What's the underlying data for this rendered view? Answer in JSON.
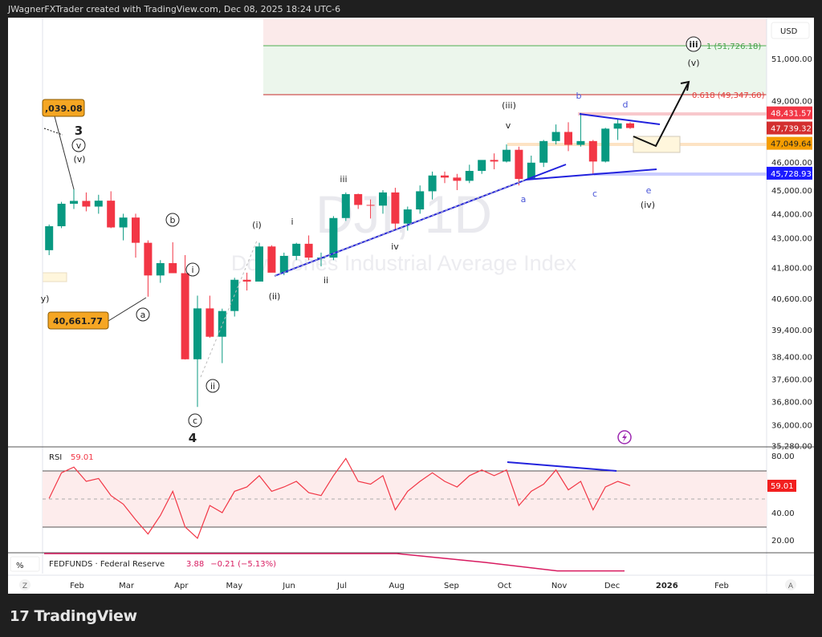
{
  "header": {
    "credit": "JWagnerFXTrader created with TradingView.com, Dec 08, 2025 18:24 UTC-6"
  },
  "watermark": {
    "symbol": "DJI, 1D",
    "name": "Dow Jones Industrial Average Index"
  },
  "price_axis": {
    "currency": "USD",
    "ticks": [
      "51,000.00",
      "49,000.00",
      "46,000.00",
      "45,000.00",
      "44,000.00",
      "43,000.00",
      "41,800.00",
      "40,600.00",
      "39,400.00",
      "38,400.00",
      "37,600.00",
      "36,800.00",
      "36,000.00",
      "35,280.00"
    ],
    "badges": [
      {
        "label": "48,431.57",
        "color": "#f23645"
      },
      {
        "label": "47,739.32",
        "color": "#d32f2f"
      },
      {
        "label": "47,049.64",
        "color": "#f59d00"
      },
      {
        "label": "45,728.93",
        "color": "#1a1aff"
      }
    ]
  },
  "fib": {
    "level_1": "1 (51,726.18)",
    "level_0618": "0.618 (49,347.60)"
  },
  "callouts": {
    "high": ",039.08",
    "low": "40,661.77"
  },
  "wave_labels": {
    "w3": "3",
    "v_circ": "v",
    "v_paren_a": "(v)",
    "b_circ": "b",
    "i_circ": "i",
    "a_circ": "a",
    "ii_circ": "ii",
    "c_circ": "c",
    "w4": "4",
    "i_paren": "(i)",
    "i_small": "i",
    "iii_small": "iii",
    "iv_small": "iv",
    "ii_small": "ii",
    "ii_paren": "(ii)",
    "iii_paren": "(iii)",
    "v_small": "v",
    "a_tri": "a",
    "b_tri": "b",
    "c_tri": "c",
    "d_tri": "d",
    "e_tri": "e",
    "iv_paren": "(iv)",
    "iii_circ_top": "iii",
    "v_paren_top": "(v)",
    "v_left_clip": "y)"
  },
  "rsi": {
    "title": "RSI",
    "value": "59.01",
    "ticks": [
      "80.00",
      "40.00",
      "20.00"
    ],
    "badge": "59.01",
    "color": "#f23645"
  },
  "fedfunds": {
    "axis_unit": "%",
    "title": "FEDFUNDS · Federal Reserve",
    "value": "3.88",
    "change": "−0.21 (−5.13%)",
    "color": "#d81b60"
  },
  "time_axis": {
    "left_button": "Z",
    "right_button": "A",
    "ticks": [
      {
        "label": "Feb",
        "date": "2025-02-01"
      },
      {
        "label": "Mar",
        "date": "2025-03-01"
      },
      {
        "label": "Apr",
        "date": "2025-04-01"
      },
      {
        "label": "May",
        "date": "2025-05-01"
      },
      {
        "label": "Jun",
        "date": "2025-06-01"
      },
      {
        "label": "Jul",
        "date": "2025-07-01"
      },
      {
        "label": "Aug",
        "date": "2025-08-01"
      },
      {
        "label": "Sep",
        "date": "2025-09-01"
      },
      {
        "label": "Oct",
        "date": "2025-10-01"
      },
      {
        "label": "Nov",
        "date": "2025-11-01"
      },
      {
        "label": "Dec",
        "date": "2025-12-01"
      },
      {
        "label": "2026",
        "date": "2026-01-01"
      },
      {
        "label": "Feb",
        "date": "2026-02-01"
      }
    ]
  },
  "footer": {
    "brand": "TradingView"
  },
  "chart_data": {
    "type": "candlestick",
    "symbol": "DJI",
    "interval": "1D",
    "y_scale": "log",
    "ylim": [
      35280,
      53000
    ],
    "up_color": "#089981",
    "down_color": "#f23645",
    "candles_approx_weekly": [
      {
        "d": "2025-01-13",
        "o": 42500,
        "h": 43550,
        "l": 42300,
        "c": 43480
      },
      {
        "d": "2025-01-20",
        "o": 43480,
        "h": 44500,
        "l": 43400,
        "c": 44420
      },
      {
        "d": "2025-01-27",
        "o": 44420,
        "h": 45050,
        "l": 44200,
        "c": 44540
      },
      {
        "d": "2025-02-03",
        "o": 44540,
        "h": 44900,
        "l": 44100,
        "c": 44300
      },
      {
        "d": "2025-02-10",
        "o": 44300,
        "h": 44800,
        "l": 44000,
        "c": 44550
      },
      {
        "d": "2025-02-17",
        "o": 44550,
        "h": 44950,
        "l": 43400,
        "c": 43430
      },
      {
        "d": "2025-02-24",
        "o": 43430,
        "h": 44000,
        "l": 42900,
        "c": 43840
      },
      {
        "d": "2025-03-03",
        "o": 43840,
        "h": 44000,
        "l": 42200,
        "c": 42800
      },
      {
        "d": "2025-03-10",
        "o": 42800,
        "h": 42900,
        "l": 40660,
        "c": 41490
      },
      {
        "d": "2025-03-17",
        "o": 41490,
        "h": 42100,
        "l": 41200,
        "c": 41980
      },
      {
        "d": "2025-03-24",
        "o": 41980,
        "h": 42820,
        "l": 41700,
        "c": 41580
      },
      {
        "d": "2025-03-31",
        "o": 41580,
        "h": 42300,
        "l": 38300,
        "c": 38310
      },
      {
        "d": "2025-04-07",
        "o": 38310,
        "h": 40700,
        "l": 36610,
        "c": 40210
      },
      {
        "d": "2025-04-14",
        "o": 40210,
        "h": 40700,
        "l": 39100,
        "c": 39140
      },
      {
        "d": "2025-04-21",
        "o": 39140,
        "h": 40200,
        "l": 38170,
        "c": 40110
      },
      {
        "d": "2025-04-28",
        "o": 40110,
        "h": 41400,
        "l": 39900,
        "c": 41320
      },
      {
        "d": "2025-05-05",
        "o": 41320,
        "h": 41600,
        "l": 40900,
        "c": 41250
      },
      {
        "d": "2025-05-12",
        "o": 41250,
        "h": 42800,
        "l": 41300,
        "c": 42650
      },
      {
        "d": "2025-05-19",
        "o": 42650,
        "h": 42700,
        "l": 41800,
        "c": 41600
      },
      {
        "d": "2025-05-26",
        "o": 41600,
        "h": 42400,
        "l": 41500,
        "c": 42270
      },
      {
        "d": "2025-06-02",
        "o": 42270,
        "h": 42800,
        "l": 42100,
        "c": 42760
      },
      {
        "d": "2025-06-09",
        "o": 42760,
        "h": 43100,
        "l": 42100,
        "c": 42200
      },
      {
        "d": "2025-06-16",
        "o": 42200,
        "h": 42400,
        "l": 41850,
        "c": 42200
      },
      {
        "d": "2025-06-23",
        "o": 42200,
        "h": 43900,
        "l": 42100,
        "c": 43820
      },
      {
        "d": "2025-06-30",
        "o": 43820,
        "h": 44900,
        "l": 43700,
        "c": 44830
      },
      {
        "d": "2025-07-07",
        "o": 44830,
        "h": 44850,
        "l": 44200,
        "c": 44370
      },
      {
        "d": "2025-07-14",
        "o": 44370,
        "h": 44600,
        "l": 43800,
        "c": 44340
      },
      {
        "d": "2025-07-21",
        "o": 44340,
        "h": 45000,
        "l": 44000,
        "c": 44900
      },
      {
        "d": "2025-07-28",
        "o": 44900,
        "h": 45100,
        "l": 43300,
        "c": 43590
      },
      {
        "d": "2025-08-04",
        "o": 43590,
        "h": 44300,
        "l": 43300,
        "c": 44180
      },
      {
        "d": "2025-08-11",
        "o": 44180,
        "h": 45200,
        "l": 44000,
        "c": 44950
      },
      {
        "d": "2025-08-18",
        "o": 44950,
        "h": 45800,
        "l": 44600,
        "c": 45630
      },
      {
        "d": "2025-08-25",
        "o": 45630,
        "h": 45800,
        "l": 45300,
        "c": 45540
      },
      {
        "d": "2025-09-01",
        "o": 45540,
        "h": 45700,
        "l": 45000,
        "c": 45400
      },
      {
        "d": "2025-09-08",
        "o": 45400,
        "h": 46100,
        "l": 45300,
        "c": 45830
      },
      {
        "d": "2025-09-15",
        "o": 45830,
        "h": 46300,
        "l": 45700,
        "c": 46310
      },
      {
        "d": "2025-09-22",
        "o": 46310,
        "h": 46600,
        "l": 45900,
        "c": 46240
      },
      {
        "d": "2025-09-29",
        "o": 46240,
        "h": 47000,
        "l": 46200,
        "c": 46760
      },
      {
        "d": "2025-10-06",
        "o": 46760,
        "h": 46900,
        "l": 45200,
        "c": 45480
      },
      {
        "d": "2025-10-13",
        "o": 45480,
        "h": 46500,
        "l": 45500,
        "c": 46190
      },
      {
        "d": "2025-10-20",
        "o": 46190,
        "h": 47200,
        "l": 46000,
        "c": 47150
      },
      {
        "d": "2025-10-27",
        "o": 47150,
        "h": 47900,
        "l": 47000,
        "c": 47560
      },
      {
        "d": "2025-11-03",
        "o": 47560,
        "h": 48000,
        "l": 46700,
        "c": 46980
      },
      {
        "d": "2025-11-10",
        "o": 46980,
        "h": 48430,
        "l": 46900,
        "c": 47150
      },
      {
        "d": "2025-11-17",
        "o": 47150,
        "h": 47200,
        "l": 45700,
        "c": 46240
      },
      {
        "d": "2025-11-24",
        "o": 46240,
        "h": 47750,
        "l": 46200,
        "c": 47710
      },
      {
        "d": "2025-12-01",
        "o": 47710,
        "h": 48130,
        "l": 47200,
        "c": 47950
      },
      {
        "d": "2025-12-08",
        "o": 47950,
        "h": 48000,
        "l": 47700,
        "c": 47739.32
      }
    ],
    "rsi_approx_weekly": [
      50,
      68,
      72,
      62,
      64,
      52,
      46,
      35,
      25,
      38,
      55,
      30,
      22,
      45,
      40,
      55,
      58,
      66,
      55,
      58,
      62,
      54,
      52,
      66,
      78,
      62,
      60,
      66,
      42,
      55,
      62,
      68,
      62,
      58,
      66,
      70,
      66,
      70,
      45,
      55,
      60,
      70,
      56,
      62,
      42,
      58,
      62,
      59.01
    ],
    "rsi_levels": {
      "upper": 70,
      "middle": 50,
      "lower": 30
    },
    "fedfunds_approx": [
      {
        "d": "2025-01-13",
        "v": 4.33
      },
      {
        "d": "2025-08-01",
        "v": 4.33
      },
      {
        "d": "2025-09-20",
        "v": 4.1
      },
      {
        "d": "2025-10-31",
        "v": 3.88
      },
      {
        "d": "2025-12-08",
        "v": 3.88
      }
    ]
  }
}
